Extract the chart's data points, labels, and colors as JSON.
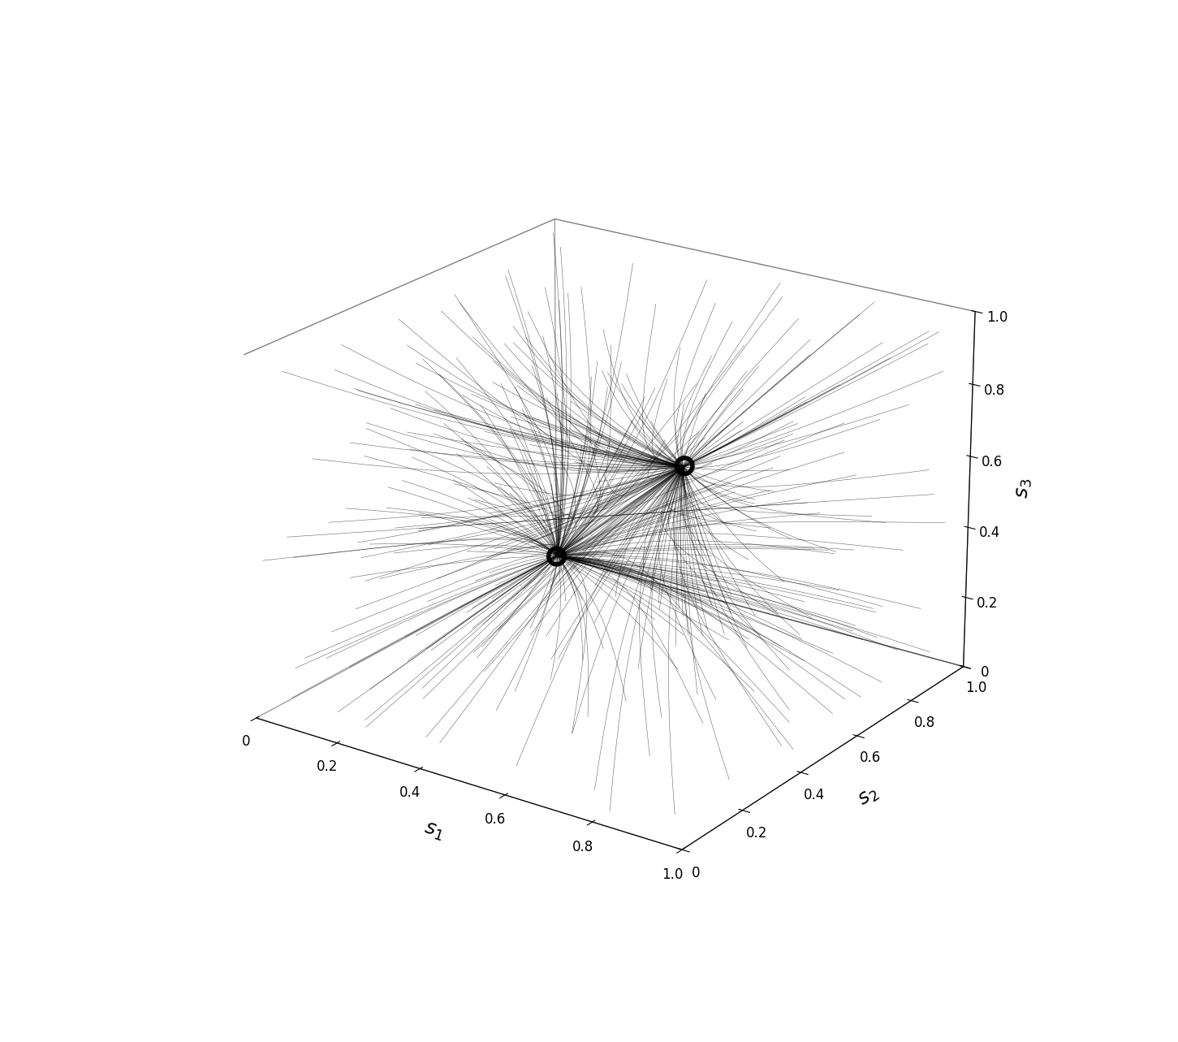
{
  "xlabel": "$s_1$",
  "ylabel": "$s_2$",
  "zlabel": "$s_3$",
  "xlim": [
    0,
    1
  ],
  "ylim": [
    0,
    1
  ],
  "zlim": [
    0,
    1
  ],
  "xticks": [
    0,
    0.2,
    0.4,
    0.6,
    0.8,
    1.0
  ],
  "yticks": [
    0,
    0.2,
    0.4,
    0.6,
    0.8,
    1.0
  ],
  "zticks": [
    0,
    0.2,
    0.4,
    0.6,
    0.8,
    1.0
  ],
  "attractor1": [
    0.0,
    1.0,
    0.0
  ],
  "attractor2": [
    1.0,
    0.0,
    1.0
  ],
  "line_color": "#000000",
  "line_alpha": 0.6,
  "line_width": 0.4,
  "n_trajectories": 300,
  "n_steps": 400,
  "dt": 0.015,
  "background_color": "#ffffff",
  "circle_size": 200,
  "circle_lw": 4.0,
  "elev": 22,
  "azim": -55
}
